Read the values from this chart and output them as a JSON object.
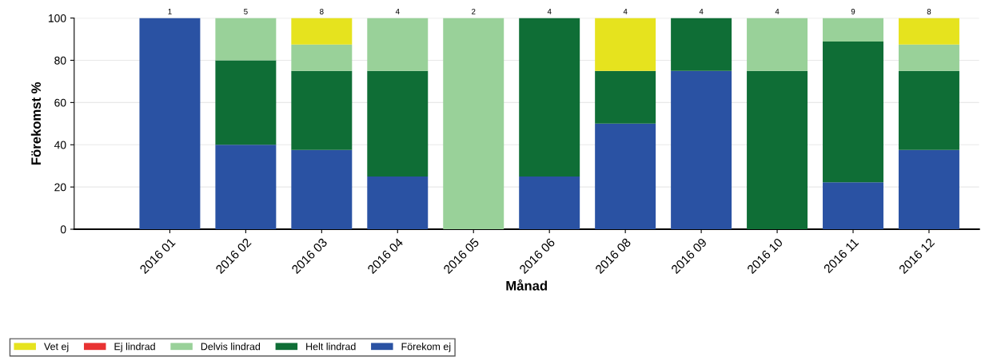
{
  "chart_data": {
    "type": "bar",
    "stacked": true,
    "xlabel": "Månad",
    "ylabel": "Förekomst %",
    "categories": [
      "2016 01",
      "2016 02",
      "2016 03",
      "2016 04",
      "2016 05",
      "2016 06",
      "2016 08",
      "2016 09",
      "2016 10",
      "2016 11",
      "2016 12"
    ],
    "series": [
      {
        "name": "Förekom ej",
        "color": "#2a52a3",
        "values": [
          100,
          40,
          37.5,
          25,
          0,
          25,
          50,
          75,
          0,
          22.2,
          37.5
        ]
      },
      {
        "name": "Helt lindrad",
        "color": "#0f6e36",
        "values": [
          0,
          40,
          37.5,
          50,
          0,
          75,
          25,
          25,
          75,
          66.7,
          37.5
        ]
      },
      {
        "name": "Delvis lindrad",
        "color": "#99d199",
        "values": [
          0,
          20,
          12.5,
          25,
          100,
          0,
          0,
          0,
          25,
          11.1,
          12.5
        ]
      },
      {
        "name": "Ej lindrad",
        "color": "#e83232",
        "values": [
          0,
          0,
          0,
          0,
          0,
          0,
          0,
          0,
          0,
          0,
          0
        ]
      },
      {
        "name": "Vet ej",
        "color": "#e6e31e",
        "values": [
          0,
          0,
          12.5,
          0,
          0,
          0,
          25,
          0,
          0,
          0,
          12.5
        ]
      }
    ],
    "annotations": [
      {
        "text": "1",
        "x": "2016 01",
        "y": 100
      },
      {
        "text": "5",
        "x": "2016 02",
        "y": 100
      },
      {
        "text": "8",
        "x": "2016 03",
        "y": 100
      },
      {
        "text": "4",
        "x": "2016 04",
        "y": 100
      },
      {
        "text": "2",
        "x": "2016 05",
        "y": 100
      },
      {
        "text": "4",
        "x": "2016 06",
        "y": 100
      },
      {
        "text": "4",
        "x": "2016 08",
        "y": 100
      },
      {
        "text": "4",
        "x": "2016 09",
        "y": 100
      },
      {
        "text": "4",
        "x": "2016 10",
        "y": 100
      },
      {
        "text": "9",
        "x": "2016 11",
        "y": 100
      },
      {
        "text": "8",
        "x": "2016 12",
        "y": 100
      }
    ],
    "ylim": [
      0,
      100
    ],
    "yticks": [
      0,
      20,
      40,
      60,
      80,
      100
    ],
    "grid": "y",
    "legend": "bottom"
  }
}
